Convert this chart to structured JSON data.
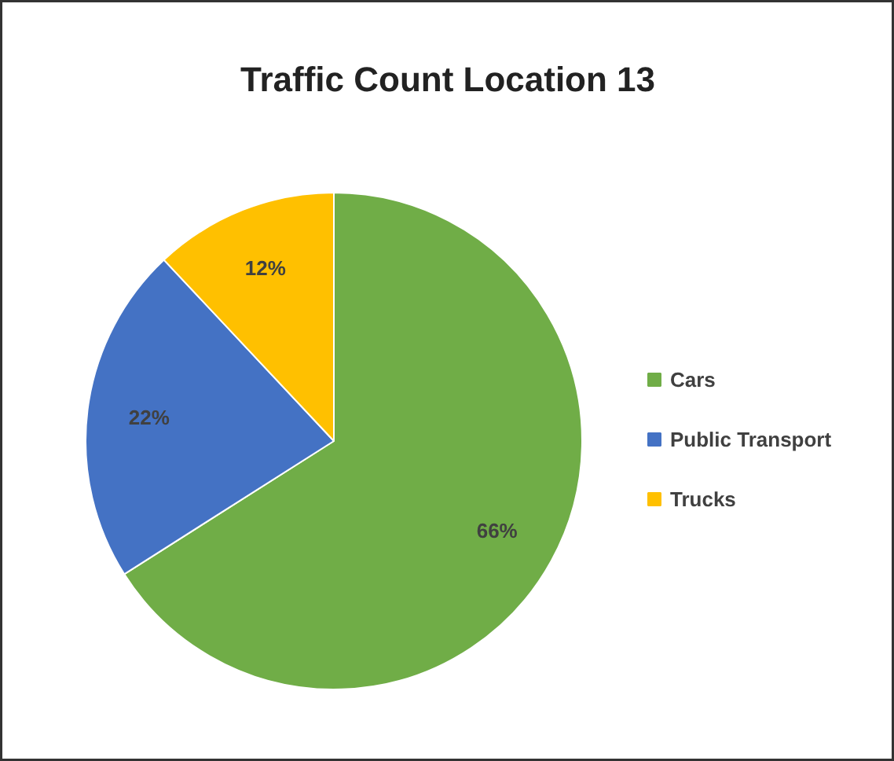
{
  "chart_data": {
    "type": "pie",
    "title": "Traffic Count Location 13",
    "categories": [
      "Cars",
      "Public Transport",
      "Trucks"
    ],
    "values": [
      66,
      22,
      12
    ],
    "colors": [
      "#70ad47",
      "#4472c4",
      "#ffc000"
    ],
    "value_labels": [
      "66%",
      "22%",
      "12%"
    ],
    "legend": "right"
  }
}
